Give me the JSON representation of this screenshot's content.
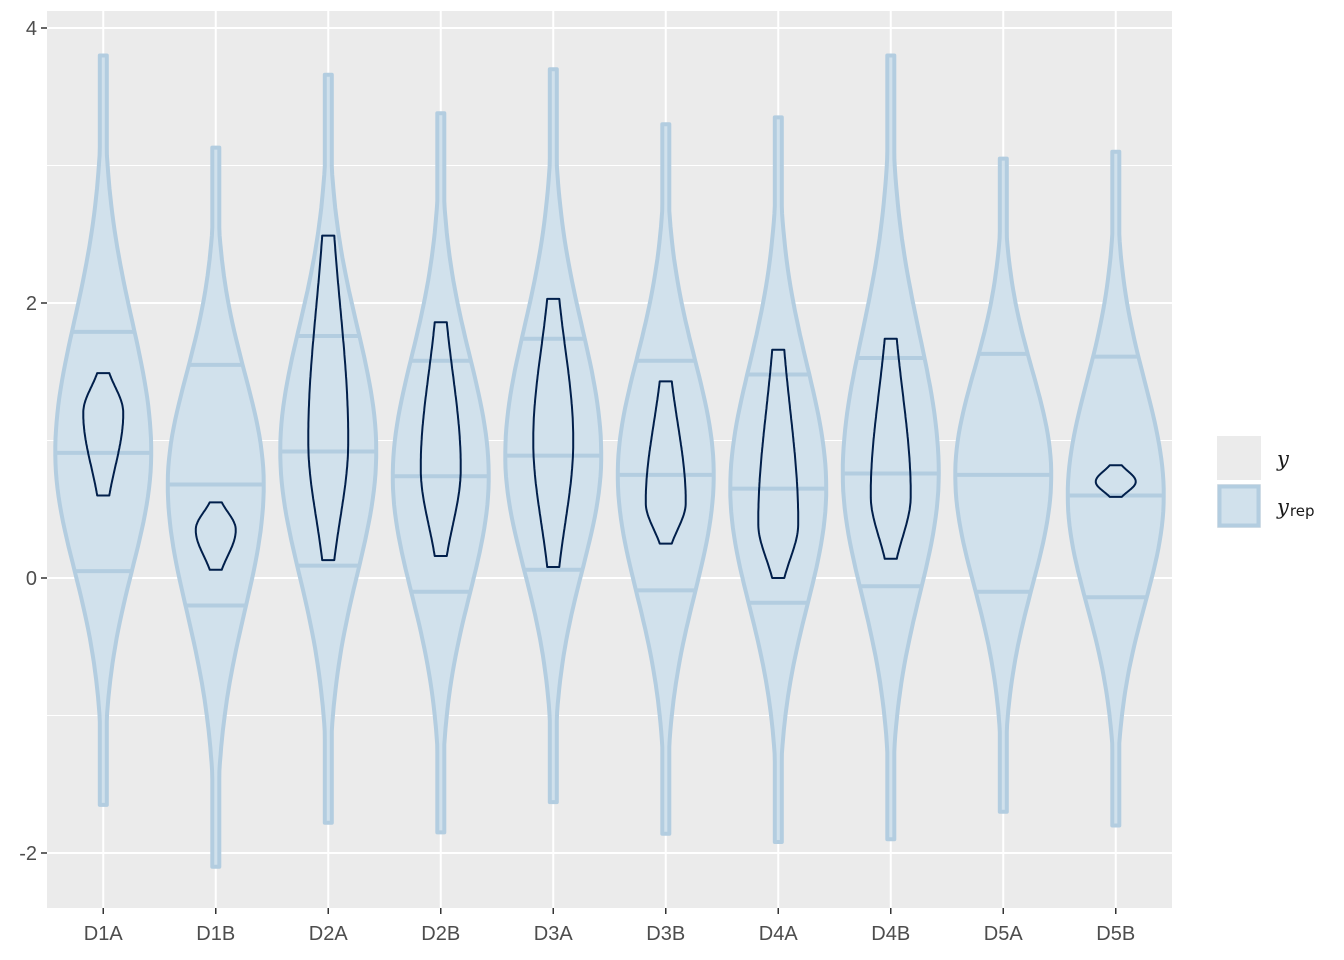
{
  "chart_data": {
    "type": "violin",
    "categories": [
      "D1A",
      "D1B",
      "D2A",
      "D2B",
      "D3A",
      "D3B",
      "D4A",
      "D4B",
      "D5A",
      "D5B"
    ],
    "ylim": [
      -2.4,
      4.1
    ],
    "yticks": [
      -2,
      0,
      2,
      4
    ],
    "ytick_labels": [
      "-2",
      "0",
      "2",
      "4"
    ],
    "grid": true,
    "legend_position": "right",
    "colors": {
      "yrep_fill": "#d1e1ec",
      "yrep_line": "#b3cde0",
      "y_line": "#011f4b",
      "panel_bg": "#ebebeb"
    },
    "series": [
      {
        "name": "y",
        "stats": [
          {
            "min": 0.6,
            "max": 1.49,
            "median": 1.2
          },
          {
            "min": 0.06,
            "max": 0.55,
            "median": 0.35
          },
          {
            "min": 0.13,
            "max": 2.49,
            "median": 1.0
          },
          {
            "min": 0.16,
            "max": 1.86,
            "median": 0.8
          },
          {
            "min": 0.08,
            "max": 2.03,
            "median": 1.0
          },
          {
            "min": 0.25,
            "max": 1.43,
            "median": 0.55
          },
          {
            "min": 0.0,
            "max": 1.66,
            "median": 0.4
          },
          {
            "min": 0.14,
            "max": 1.74,
            "median": 0.6
          },
          null,
          {
            "min": 0.59,
            "max": 0.82,
            "median": 0.7
          }
        ]
      },
      {
        "name": "y_rep",
        "stats": [
          {
            "min": -1.65,
            "max": 3.8,
            "q10": 0.05,
            "median": 0.91,
            "q90": 1.79
          },
          {
            "min": -2.1,
            "max": 3.13,
            "q10": -0.2,
            "median": 0.68,
            "q90": 1.55
          },
          {
            "min": -1.78,
            "max": 3.66,
            "q10": 0.09,
            "median": 0.92,
            "q90": 1.76
          },
          {
            "min": -1.85,
            "max": 3.38,
            "q10": -0.1,
            "median": 0.74,
            "q90": 1.58
          },
          {
            "min": -1.63,
            "max": 3.7,
            "q10": 0.06,
            "median": 0.89,
            "q90": 1.74
          },
          {
            "min": -1.86,
            "max": 3.3,
            "q10": -0.09,
            "median": 0.75,
            "q90": 1.58
          },
          {
            "min": -1.92,
            "max": 3.35,
            "q10": -0.18,
            "median": 0.65,
            "q90": 1.48
          },
          {
            "min": -1.9,
            "max": 3.8,
            "q10": -0.06,
            "median": 0.76,
            "q90": 1.6
          },
          {
            "min": -1.7,
            "max": 3.05,
            "q10": -0.1,
            "median": 0.75,
            "q90": 1.63
          },
          {
            "min": -1.8,
            "max": 3.1,
            "q10": -0.14,
            "median": 0.6,
            "q90": 1.61
          }
        ]
      }
    ]
  },
  "legend": {
    "items": [
      {
        "label": "y",
        "subscript": ""
      },
      {
        "label": "y",
        "subscript": "rep"
      }
    ]
  }
}
